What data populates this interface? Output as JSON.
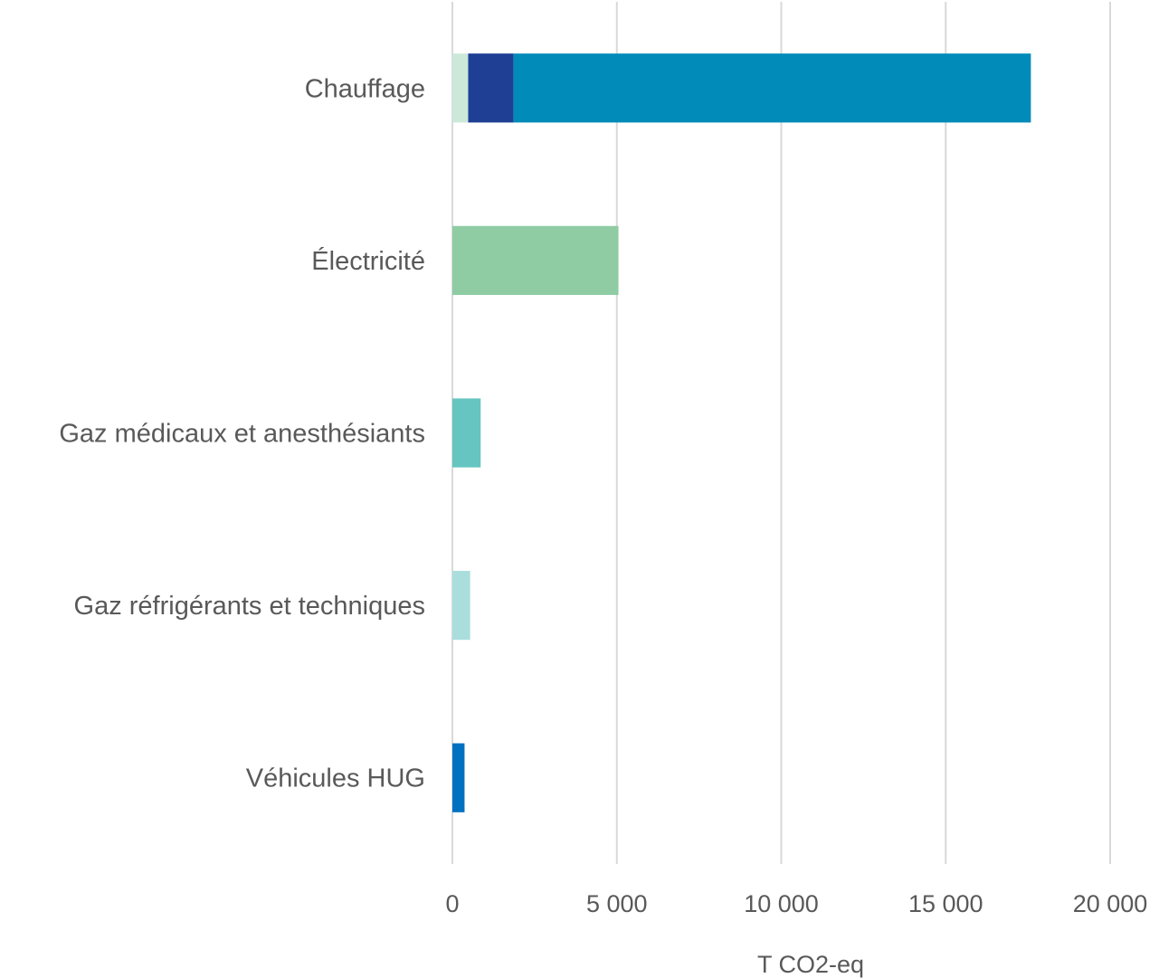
{
  "chart_data": {
    "type": "bar",
    "orientation": "horizontal",
    "stacked": true,
    "title": "",
    "xlabel": "T CO2-eq",
    "ylabel": "",
    "xlim": [
      0,
      20000
    ],
    "xticks": [
      0,
      5000,
      10000,
      15000,
      20000
    ],
    "xtick_labels": [
      "0",
      "5 000",
      "10 000",
      "15 000",
      "20 000"
    ],
    "grid": true,
    "legend": "none",
    "categories": [
      "Chauffage",
      "Électricité",
      "Gaz médicaux et anesthésiants",
      "Gaz réfrigérants et techniques",
      "Véhicules HUG"
    ],
    "segments": [
      [
        {
          "value": 480,
          "color": "#cce8d9"
        },
        {
          "value": 1380,
          "color": "#1f3f94"
        },
        {
          "value": 15730,
          "color": "#008bb9"
        }
      ],
      [
        {
          "value": 5050,
          "color": "#8fcca3"
        }
      ],
      [
        {
          "value": 860,
          "color": "#66c5c0"
        }
      ],
      [
        {
          "value": 540,
          "color": "#aadedd"
        }
      ],
      [
        {
          "value": 370,
          "color": "#0070c0"
        }
      ]
    ]
  }
}
